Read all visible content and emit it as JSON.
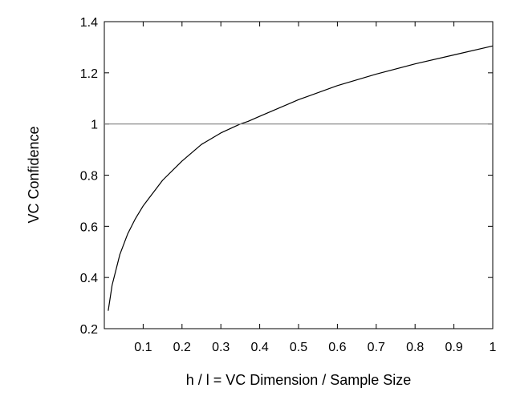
{
  "chart_data": {
    "type": "line",
    "title": "",
    "xlabel": "h / l = VC Dimension / Sample Size",
    "ylabel": "VC Confidence",
    "xlim": [
      0,
      1
    ],
    "ylim": [
      0.2,
      1.4
    ],
    "xticks": [
      0.1,
      0.2,
      0.3,
      0.4,
      0.5,
      0.6,
      0.7,
      0.8,
      0.9,
      1
    ],
    "xtick_labels": [
      "0.1",
      "0.2",
      "0.3",
      "0.4",
      "0.5",
      "0.6",
      "0.7",
      "0.8",
      "0.9",
      "1"
    ],
    "yticks": [
      0.2,
      0.4,
      0.6,
      0.8,
      1,
      1.2,
      1.4
    ],
    "ytick_labels": [
      "0.2",
      "0.4",
      "0.6",
      "0.8",
      "1",
      "1.2",
      "1.4"
    ],
    "grid": false,
    "legend": "none",
    "series": [
      {
        "color": "#000000",
        "x": [
          0.01,
          0.02,
          0.04,
          0.06,
          0.08,
          0.1,
          0.15,
          0.2,
          0.25,
          0.3,
          0.35,
          0.37,
          0.4,
          0.5,
          0.6,
          0.7,
          0.8,
          0.9,
          1.0
        ],
        "y": [
          0.27,
          0.37,
          0.49,
          0.57,
          0.63,
          0.68,
          0.78,
          0.855,
          0.92,
          0.965,
          1.0,
          1.01,
          1.03,
          1.095,
          1.15,
          1.195,
          1.235,
          1.27,
          1.305
        ]
      },
      {
        "color": "#808080",
        "x": [
          0,
          1
        ],
        "y": [
          1,
          1
        ]
      }
    ]
  }
}
